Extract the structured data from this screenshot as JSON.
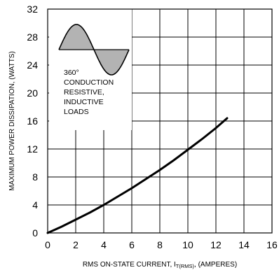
{
  "chart_data": {
    "type": "line",
    "xlabel_main": "RMS ON-STATE CURRENT, I",
    "xlabel_sub": "T(RMS)",
    "xlabel_tail": ", (AMPERES)",
    "ylabel": "MAXIMUM POWER DISSIPATION, (WATTS)",
    "xlim": [
      0,
      16
    ],
    "ylim": [
      0,
      32
    ],
    "x_ticks": [
      0,
      2,
      4,
      6,
      8,
      10,
      12,
      14,
      16
    ],
    "y_ticks": [
      0,
      4,
      8,
      12,
      16,
      20,
      24,
      28,
      32
    ],
    "grid": true,
    "annotation_lines": [
      "360°",
      "CONDUCTION",
      "RESISTIVE,",
      "INDUCTIVE",
      "LOADS"
    ],
    "inset_icon": "sine-waveform-icon",
    "series": [
      {
        "x": [
          0,
          1,
          2,
          3,
          4,
          5,
          6,
          7,
          8,
          9,
          10,
          11,
          12,
          12.8
        ],
        "y": [
          0,
          0.9,
          1.9,
          2.9,
          4.0,
          5.2,
          6.4,
          7.7,
          9.0,
          10.4,
          11.9,
          13.4,
          15.0,
          16.4
        ]
      }
    ]
  }
}
